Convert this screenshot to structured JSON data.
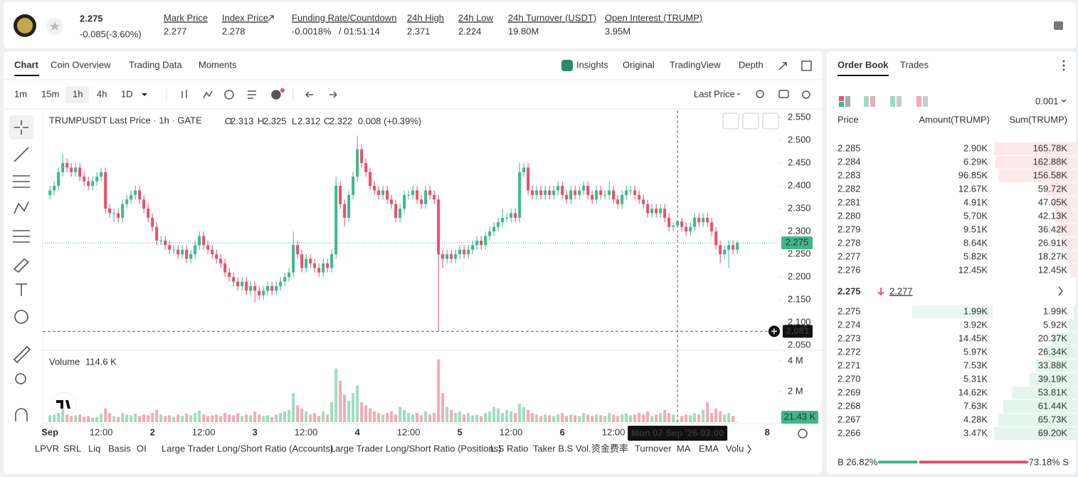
{
  "header": {
    "price": "2.275",
    "change": "-0.085(-3.60%)",
    "stats": [
      {
        "label": "Mark Price",
        "value": "2.277"
      },
      {
        "label": "Index Price",
        "value": "2.278"
      },
      {
        "label": "Funding Rate/Countdown",
        "value": "-0.0018%",
        "countdown": "/ 01:51:14"
      },
      {
        "label": "24h High",
        "value": "2.371"
      },
      {
        "label": "24h Low",
        "value": "2.224"
      },
      {
        "label": "24h Turnover (USDT)",
        "value": "19.80M"
      },
      {
        "label": "Open Interest (TRUMP)",
        "value": "3.95M"
      }
    ]
  },
  "chart_tabs": [
    "Chart",
    "Coin Overview",
    "Trading Data",
    "Moments"
  ],
  "view_tabs": [
    "Insights",
    "Original",
    "TradingView",
    "Depth"
  ],
  "intervals": [
    "1m",
    "15m",
    "1h",
    "4h",
    "1D"
  ],
  "price_source": "Last Price",
  "chart_data": {
    "type": "candlestick",
    "title": "TRUMPUSDT Last Price · 1h · GATE",
    "ohlc": [
      {
        "key": "O",
        "value": "2.313"
      },
      {
        "key": "H",
        "value": "2.325"
      },
      {
        "key": "L",
        "value": "2.312"
      },
      {
        "key": "C",
        "value": "2.322"
      }
    ],
    "change": "0.008 (+0.39%)",
    "up_color": "#3cb88a",
    "down_color": "#e84f6a",
    "up_volume_color": "#9fdcc2",
    "down_volume_color": "#f3a9b6",
    "xlim": [
      -1.7,
      170.8
    ],
    "ylim": [
      2.0394,
      2.5656
    ],
    "yticks": [
      {
        "value": 2.55,
        "label": "2.550"
      },
      {
        "value": 2.5,
        "label": "2.500"
      },
      {
        "value": 2.45,
        "label": "2.450"
      },
      {
        "value": 2.4,
        "label": "2.400"
      },
      {
        "value": 2.35,
        "label": "2.350"
      },
      {
        "value": 2.3,
        "label": "2.300"
      },
      {
        "value": 2.25,
        "label": "2.250"
      },
      {
        "value": 2.2,
        "label": "2.200"
      },
      {
        "value": 2.15,
        "label": "2.150"
      },
      {
        "value": 2.1,
        "label": "2.100"
      },
      {
        "value": 2.05,
        "label": "2.050"
      }
    ],
    "xticks": [
      {
        "value": 0,
        "label": "Sep"
      },
      {
        "value": 12,
        "label": "12:00"
      },
      {
        "value": 24,
        "label": "2"
      },
      {
        "value": 36,
        "label": "12:00"
      },
      {
        "value": 48,
        "label": "3"
      },
      {
        "value": 60,
        "label": "12:00"
      },
      {
        "value": 72,
        "label": "4"
      },
      {
        "value": 84,
        "label": "12:00"
      },
      {
        "value": 96,
        "label": "5"
      },
      {
        "value": 108,
        "label": "12:00"
      },
      {
        "value": 120,
        "label": "6"
      },
      {
        "value": 132,
        "label": "12:00"
      },
      {
        "value": 168,
        "label": "8"
      }
    ],
    "last_price": {
      "value": 2.275,
      "label": "2.275"
    },
    "crosshair": {
      "price": {
        "value": 2.081,
        "label": "2.081"
      },
      "time": {
        "value": 147,
        "label": "Mon 07 Sep '26 03:00"
      }
    },
    "candles": [
      [
        2.38,
        2.4,
        2.37,
        2.39
      ],
      [
        2.39,
        2.41,
        2.38,
        2.4
      ],
      [
        2.4,
        2.44,
        2.39,
        2.43
      ],
      [
        2.43,
        2.47,
        2.42,
        2.45
      ],
      [
        2.45,
        2.46,
        2.43,
        2.44
      ],
      [
        2.44,
        2.45,
        2.42,
        2.43
      ],
      [
        2.43,
        2.45,
        2.42,
        2.44
      ],
      [
        2.44,
        2.45,
        2.41,
        2.42
      ],
      [
        2.42,
        2.43,
        2.4,
        2.41
      ],
      [
        2.41,
        2.42,
        2.39,
        2.4
      ],
      [
        2.4,
        2.42,
        2.39,
        2.41
      ],
      [
        2.41,
        2.43,
        2.4,
        2.42
      ],
      [
        2.42,
        2.44,
        2.41,
        2.43
      ],
      [
        2.43,
        2.44,
        2.34,
        2.35
      ],
      [
        2.35,
        2.36,
        2.33,
        2.34
      ],
      [
        2.34,
        2.35,
        2.32,
        2.34
      ],
      [
        2.34,
        2.35,
        2.32,
        2.33
      ],
      [
        2.33,
        2.37,
        2.32,
        2.36
      ],
      [
        2.36,
        2.38,
        2.35,
        2.37
      ],
      [
        2.37,
        2.39,
        2.36,
        2.38
      ],
      [
        2.38,
        2.4,
        2.37,
        2.39
      ],
      [
        2.39,
        2.4,
        2.36,
        2.37
      ],
      [
        2.37,
        2.38,
        2.34,
        2.35
      ],
      [
        2.35,
        2.36,
        2.32,
        2.33
      ],
      [
        2.33,
        2.34,
        2.3,
        2.31
      ],
      [
        2.31,
        2.32,
        2.27,
        2.28
      ],
      [
        2.28,
        2.29,
        2.27,
        2.28
      ],
      [
        2.28,
        2.29,
        2.26,
        2.27
      ],
      [
        2.27,
        2.28,
        2.25,
        2.26
      ],
      [
        2.26,
        2.27,
        2.25,
        2.26
      ],
      [
        2.26,
        2.27,
        2.24,
        2.25
      ],
      [
        2.25,
        2.27,
        2.24,
        2.26
      ],
      [
        2.26,
        2.27,
        2.23,
        2.24
      ],
      [
        2.24,
        2.26,
        2.23,
        2.25
      ],
      [
        2.25,
        2.28,
        2.24,
        2.27
      ],
      [
        2.27,
        2.3,
        2.26,
        2.29
      ],
      [
        2.29,
        2.3,
        2.26,
        2.27
      ],
      [
        2.27,
        2.28,
        2.25,
        2.26
      ],
      [
        2.26,
        2.27,
        2.24,
        2.25
      ],
      [
        2.25,
        2.26,
        2.23,
        2.24
      ],
      [
        2.24,
        2.25,
        2.22,
        2.23
      ],
      [
        2.23,
        2.24,
        2.2,
        2.21
      ],
      [
        2.21,
        2.22,
        2.19,
        2.2
      ],
      [
        2.2,
        2.21,
        2.18,
        2.19
      ],
      [
        2.19,
        2.2,
        2.17,
        2.18
      ],
      [
        2.18,
        2.2,
        2.17,
        2.19
      ],
      [
        2.19,
        2.2,
        2.16,
        2.17
      ],
      [
        2.17,
        2.19,
        2.16,
        2.18
      ],
      [
        2.18,
        2.19,
        2.145,
        2.17
      ],
      [
        2.17,
        2.18,
        2.15,
        2.16
      ],
      [
        2.16,
        2.18,
        2.15,
        2.17
      ],
      [
        2.17,
        2.19,
        2.16,
        2.18
      ],
      [
        2.18,
        2.19,
        2.16,
        2.17
      ],
      [
        2.17,
        2.19,
        2.16,
        2.18
      ],
      [
        2.18,
        2.2,
        2.17,
        2.19
      ],
      [
        2.19,
        2.21,
        2.18,
        2.2
      ],
      [
        2.2,
        2.22,
        2.19,
        2.21
      ],
      [
        2.21,
        2.3,
        2.2,
        2.27
      ],
      [
        2.27,
        2.28,
        2.24,
        2.25
      ],
      [
        2.25,
        2.26,
        2.21,
        2.22
      ],
      [
        2.22,
        2.25,
        2.21,
        2.24
      ],
      [
        2.24,
        2.25,
        2.22,
        2.23
      ],
      [
        2.23,
        2.24,
        2.21,
        2.22
      ],
      [
        2.22,
        2.23,
        2.2,
        2.21
      ],
      [
        2.21,
        2.24,
        2.2,
        2.23
      ],
      [
        2.23,
        2.24,
        2.21,
        2.22
      ],
      [
        2.22,
        2.26,
        2.21,
        2.25
      ],
      [
        2.25,
        2.42,
        2.24,
        2.4
      ],
      [
        2.4,
        2.41,
        2.35,
        2.36
      ],
      [
        2.36,
        2.37,
        2.31,
        2.33
      ],
      [
        2.33,
        2.39,
        2.32,
        2.38
      ],
      [
        2.38,
        2.43,
        2.37,
        2.42
      ],
      [
        2.42,
        2.51,
        2.41,
        2.48
      ],
      [
        2.48,
        2.49,
        2.44,
        2.45
      ],
      [
        2.45,
        2.46,
        2.42,
        2.43
      ],
      [
        2.43,
        2.44,
        2.39,
        2.4
      ],
      [
        2.4,
        2.41,
        2.38,
        2.39
      ],
      [
        2.39,
        2.4,
        2.37,
        2.38
      ],
      [
        2.38,
        2.4,
        2.37,
        2.39
      ],
      [
        2.39,
        2.4,
        2.36,
        2.37
      ],
      [
        2.37,
        2.38,
        2.35,
        2.36
      ],
      [
        2.36,
        2.37,
        2.32,
        2.33
      ],
      [
        2.33,
        2.36,
        2.32,
        2.35
      ],
      [
        2.35,
        2.39,
        2.34,
        2.38
      ],
      [
        2.38,
        2.39,
        2.37,
        2.38
      ],
      [
        2.38,
        2.4,
        2.37,
        2.39
      ],
      [
        2.39,
        2.4,
        2.36,
        2.37
      ],
      [
        2.37,
        2.38,
        2.35,
        2.36
      ],
      [
        2.36,
        2.4,
        2.35,
        2.39
      ],
      [
        2.39,
        2.4,
        2.37,
        2.38
      ],
      [
        2.38,
        2.39,
        2.36,
        2.37
      ],
      [
        2.37,
        2.38,
        2.081,
        2.25
      ],
      [
        2.25,
        2.26,
        2.22,
        2.24
      ],
      [
        2.24,
        2.26,
        2.23,
        2.25
      ],
      [
        2.25,
        2.26,
        2.23,
        2.24
      ],
      [
        2.24,
        2.26,
        2.23,
        2.25
      ],
      [
        2.25,
        2.27,
        2.24,
        2.26
      ],
      [
        2.26,
        2.27,
        2.24,
        2.25
      ],
      [
        2.25,
        2.27,
        2.24,
        2.26
      ],
      [
        2.26,
        2.28,
        2.25,
        2.27
      ],
      [
        2.27,
        2.29,
        2.26,
        2.28
      ],
      [
        2.28,
        2.29,
        2.26,
        2.27
      ],
      [
        2.27,
        2.3,
        2.26,
        2.29
      ],
      [
        2.29,
        2.31,
        2.28,
        2.3
      ],
      [
        2.3,
        2.32,
        2.29,
        2.31
      ],
      [
        2.31,
        2.33,
        2.3,
        2.32
      ],
      [
        2.32,
        2.35,
        2.31,
        2.33
      ],
      [
        2.33,
        2.34,
        2.32,
        2.33
      ],
      [
        2.33,
        2.35,
        2.32,
        2.34
      ],
      [
        2.34,
        2.35,
        2.32,
        2.33
      ],
      [
        2.33,
        2.45,
        2.32,
        2.43
      ],
      [
        2.43,
        2.45,
        2.42,
        2.44
      ],
      [
        2.44,
        2.45,
        2.38,
        2.39
      ],
      [
        2.39,
        2.4,
        2.37,
        2.38
      ],
      [
        2.38,
        2.4,
        2.37,
        2.39
      ],
      [
        2.39,
        2.4,
        2.37,
        2.38
      ],
      [
        2.38,
        2.4,
        2.37,
        2.39
      ],
      [
        2.39,
        2.4,
        2.37,
        2.38
      ],
      [
        2.38,
        2.4,
        2.37,
        2.39
      ],
      [
        2.39,
        2.41,
        2.38,
        2.4
      ],
      [
        2.4,
        2.41,
        2.37,
        2.38
      ],
      [
        2.38,
        2.39,
        2.36,
        2.37
      ],
      [
        2.37,
        2.4,
        2.36,
        2.39
      ],
      [
        2.39,
        2.4,
        2.37,
        2.38
      ],
      [
        2.38,
        2.4,
        2.37,
        2.39
      ],
      [
        2.39,
        2.41,
        2.38,
        2.4
      ],
      [
        2.4,
        2.41,
        2.37,
        2.38
      ],
      [
        2.38,
        2.39,
        2.36,
        2.37
      ],
      [
        2.37,
        2.4,
        2.36,
        2.39
      ],
      [
        2.39,
        2.4,
        2.37,
        2.38
      ],
      [
        2.38,
        2.39,
        2.37,
        2.38
      ],
      [
        2.38,
        2.41,
        2.37,
        2.39
      ],
      [
        2.39,
        2.4,
        2.36,
        2.37
      ],
      [
        2.37,
        2.38,
        2.35,
        2.36
      ],
      [
        2.36,
        2.39,
        2.35,
        2.38
      ],
      [
        2.38,
        2.4,
        2.37,
        2.39
      ],
      [
        2.39,
        2.4,
        2.38,
        2.39
      ],
      [
        2.39,
        2.4,
        2.37,
        2.38
      ],
      [
        2.38,
        2.39,
        2.36,
        2.37
      ],
      [
        2.37,
        2.38,
        2.35,
        2.36
      ],
      [
        2.36,
        2.37,
        2.33,
        2.34
      ],
      [
        2.34,
        2.36,
        2.33,
        2.35
      ],
      [
        2.35,
        2.36,
        2.33,
        2.34
      ],
      [
        2.34,
        2.36,
        2.33,
        2.35
      ],
      [
        2.35,
        2.36,
        2.32,
        2.33
      ],
      [
        2.33,
        2.34,
        2.3,
        2.31
      ],
      [
        2.31,
        2.32,
        2.3,
        2.313
      ],
      [
        2.313,
        2.325,
        2.312,
        2.322
      ],
      [
        2.322,
        2.33,
        2.3,
        2.31
      ],
      [
        2.31,
        2.32,
        2.29,
        2.3
      ],
      [
        2.3,
        2.32,
        2.29,
        2.31
      ],
      [
        2.31,
        2.34,
        2.3,
        2.33
      ],
      [
        2.33,
        2.34,
        2.31,
        2.32
      ],
      [
        2.32,
        2.34,
        2.31,
        2.33
      ],
      [
        2.33,
        2.34,
        2.31,
        2.32
      ],
      [
        2.32,
        2.33,
        2.29,
        2.3
      ],
      [
        2.3,
        2.31,
        2.26,
        2.27
      ],
      [
        2.27,
        2.28,
        2.23,
        2.25
      ],
      [
        2.25,
        2.27,
        2.24,
        2.26
      ],
      [
        2.26,
        2.28,
        2.22,
        2.27
      ],
      [
        2.27,
        2.28,
        2.25,
        2.26
      ],
      [
        2.26,
        2.28,
        2.25,
        2.275
      ]
    ],
    "volume": {
      "title": "Volume",
      "current_label": "114.6 K",
      "ylim": [
        0,
        4.6
      ],
      "yticks": [
        {
          "value": 4,
          "label": "4 M"
        },
        {
          "value": 2,
          "label": "2 M"
        }
      ],
      "last": {
        "value": 0.02143,
        "label": "21.43 K"
      },
      "values": [
        0.45,
        0.5,
        0.6,
        0.85,
        0.5,
        0.4,
        0.45,
        0.5,
        0.35,
        0.4,
        0.3,
        0.35,
        0.55,
        0.9,
        0.6,
        0.4,
        0.35,
        0.6,
        0.5,
        0.45,
        0.55,
        0.4,
        0.5,
        0.45,
        0.6,
        0.8,
        0.5,
        0.4,
        0.45,
        0.35,
        0.5,
        0.4,
        0.55,
        0.45,
        0.6,
        0.75,
        0.5,
        0.4,
        0.45,
        0.5,
        0.4,
        0.6,
        0.5,
        0.45,
        0.6,
        0.4,
        0.5,
        0.45,
        0.7,
        0.5,
        0.4,
        0.45,
        0.35,
        0.5,
        0.6,
        0.7,
        0.8,
        1.9,
        1.1,
        0.9,
        0.7,
        0.5,
        0.6,
        0.4,
        0.7,
        0.5,
        1.3,
        3.5,
        2.7,
        1.8,
        1.4,
        1.9,
        2.4,
        1.3,
        1.1,
        0.9,
        0.7,
        0.6,
        0.5,
        0.6,
        0.7,
        0.5,
        1.0,
        0.8,
        0.6,
        0.5,
        0.6,
        0.45,
        0.7,
        0.5,
        0.6,
        4.1,
        1.9,
        1.0,
        0.8,
        0.6,
        0.7,
        0.5,
        0.6,
        0.45,
        0.5,
        0.4,
        0.6,
        0.7,
        1.0,
        0.9,
        0.6,
        0.8,
        0.7,
        0.6,
        1.2,
        1.0,
        0.8,
        0.6,
        0.5,
        0.4,
        0.5,
        0.45,
        0.4,
        0.5,
        0.6,
        0.4,
        0.5,
        0.45,
        0.4,
        0.6,
        0.5,
        0.4,
        0.5,
        0.45,
        0.4,
        0.6,
        0.5,
        0.4,
        0.5,
        0.6,
        0.45,
        0.5,
        0.6,
        0.5,
        0.7,
        0.4,
        0.5,
        0.6,
        0.8,
        0.6,
        0.5,
        0.1146,
        0.4,
        0.5,
        0.45,
        0.6,
        0.5,
        0.8,
        1.3,
        0.6,
        0.9,
        0.7,
        0.5,
        0.6,
        0.4,
        0.02143
      ]
    },
    "indicators": [
      "LPVR",
      "SRL",
      "Liq",
      "Basis",
      "OI",
      "Large Trader Long/Short Ratio (Accounts)",
      "Large Trader Long/Short Ratio (Positions)",
      "L.S Ratio",
      "Taker B.S Vol.",
      "资金费率",
      "Turnover",
      "MA",
      "EMA",
      "Volu"
    ]
  },
  "order_book": {
    "tabs": [
      "Order Book",
      "Trades"
    ],
    "precision": "0.001",
    "columns": [
      "Price",
      "Amount(TRUMP)",
      "Sum(TRUMP)"
    ],
    "asks": [
      [
        "2.285",
        "2.90K",
        "165.78K"
      ],
      [
        "2.284",
        "6.29K",
        "162.88K"
      ],
      [
        "2.283",
        "96.85K",
        "156.58K"
      ],
      [
        "2.282",
        "12.67K",
        "59.72K"
      ],
      [
        "2.281",
        "4.91K",
        "47.05K"
      ],
      [
        "2.280",
        "5.70K",
        "42.13K"
      ],
      [
        "2.279",
        "9.51K",
        "36.42K"
      ],
      [
        "2.278",
        "8.64K",
        "26.91K"
      ],
      [
        "2.277",
        "5.82K",
        "18.27K"
      ],
      [
        "2.276",
        "12.45K",
        "12.45K"
      ]
    ],
    "mid": {
      "price": "2.275",
      "mark": "2.277"
    },
    "bids": [
      [
        "2.275",
        "1.99K",
        "1.99K"
      ],
      [
        "2.274",
        "3.92K",
        "5.92K"
      ],
      [
        "2.273",
        "14.45K",
        "20.37K"
      ],
      [
        "2.272",
        "5.97K",
        "26.34K"
      ],
      [
        "2.271",
        "7.53K",
        "33.88K"
      ],
      [
        "2.270",
        "5.31K",
        "39.19K"
      ],
      [
        "2.269",
        "14.62K",
        "53.81K"
      ],
      [
        "2.268",
        "7.63K",
        "61.44K"
      ],
      [
        "2.267",
        "4.28K",
        "65.73K"
      ],
      [
        "2.266",
        "3.47K",
        "69.20K"
      ]
    ],
    "ratio": {
      "buy": {
        "value": 26.82,
        "label": "B 26.82%"
      },
      "sell": {
        "value": 73.18,
        "label": "73.18% S"
      }
    }
  }
}
